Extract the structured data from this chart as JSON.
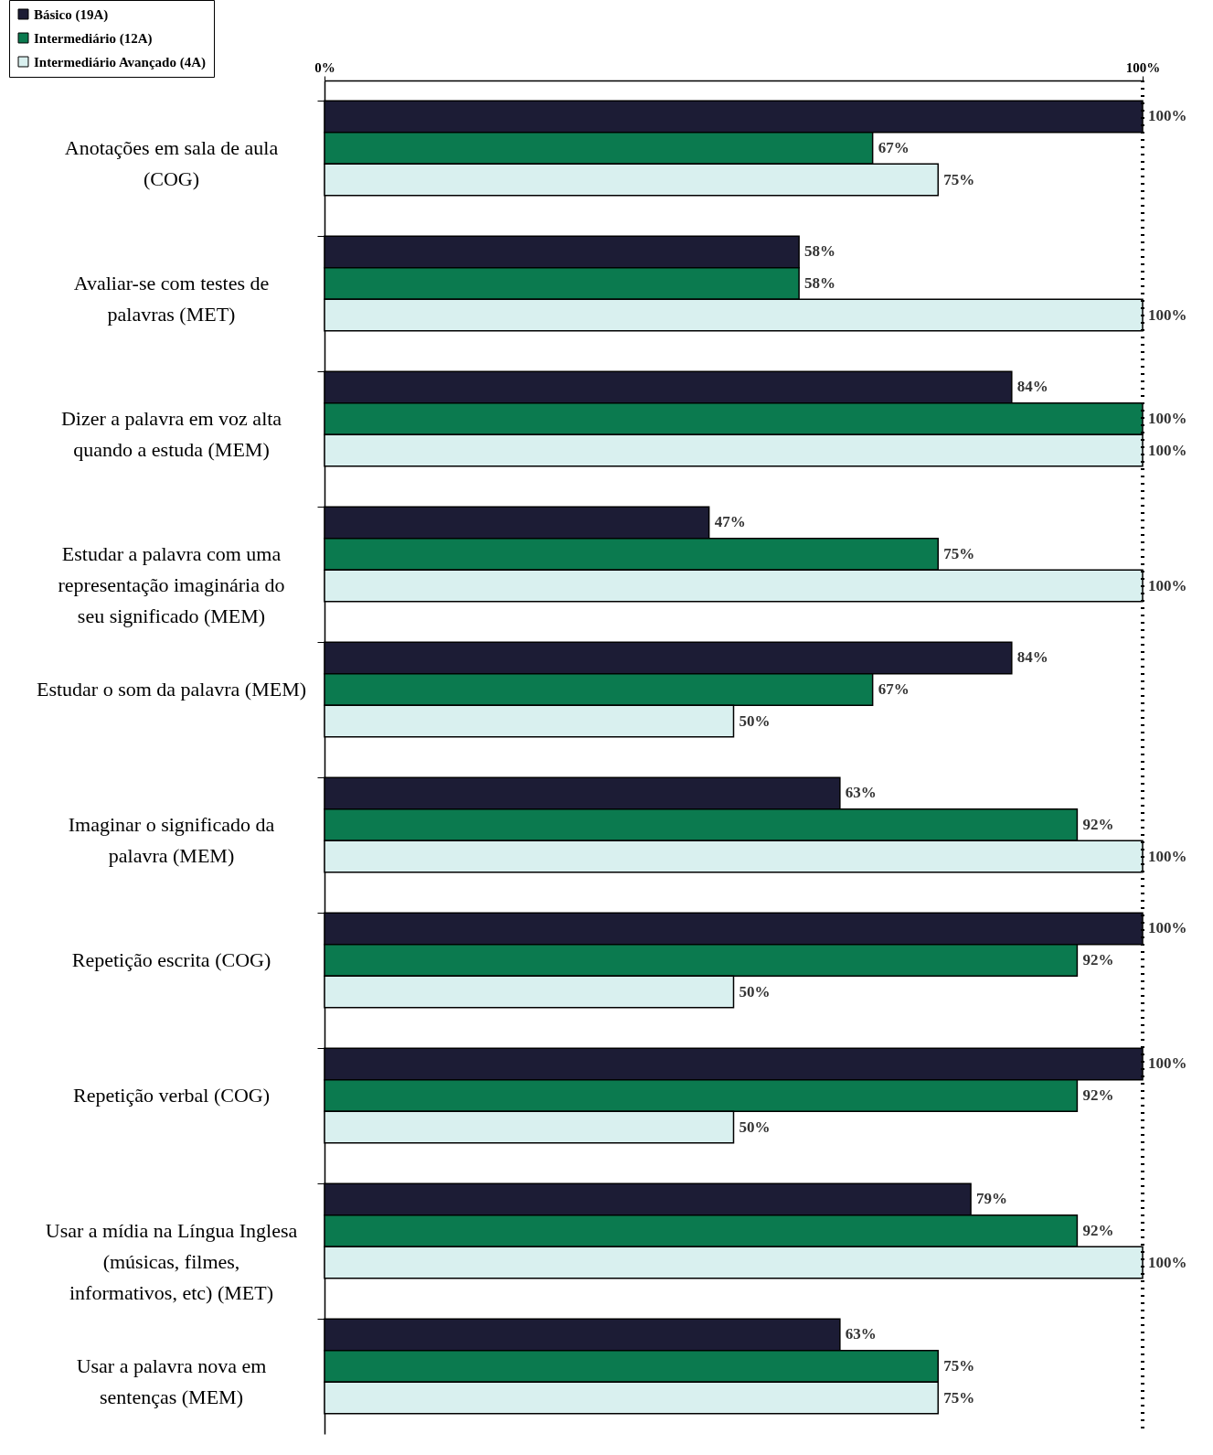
{
  "chart_data": {
    "type": "bar",
    "orientation": "horizontal",
    "categories": [
      "Anotações em sala de aula (COG)",
      "Avaliar-se com testes de palavras (MET)",
      "Dizer a palavra em voz alta quando a estuda (MEM)",
      "Estudar a palavra com uma representação imaginária do seu significado (MEM)",
      "Estudar o som da palavra (MEM)",
      "Imaginar o significado da palavra (MEM)",
      "Repetição escrita (COG)",
      "Repetição verbal (COG)",
      "Usar a mídia na Língua Inglesa (músicas, filmes, informativos, etc) (MET)",
      "Usar a palavra nova em sentenças (MEM)"
    ],
    "series": [
      {
        "name": "Básico (19A)",
        "color": "#1c1c35",
        "values": [
          100,
          58,
          84,
          47,
          84,
          63,
          100,
          100,
          79,
          63
        ],
        "value_labels": [
          "100%",
          "58%",
          "84%",
          "47%",
          "84%",
          "63%",
          "100%",
          "100%",
          "79%",
          "63%"
        ]
      },
      {
        "name": "Intermediário (12A)",
        "color": "#0b7a4f",
        "values": [
          67,
          58,
          100,
          75,
          67,
          92,
          92,
          92,
          92,
          75
        ],
        "value_labels": [
          "67%",
          "58%",
          "100%",
          "75%",
          "67%",
          "92%",
          "92%",
          "92%",
          "92%",
          "75%"
        ]
      },
      {
        "name": "Intermediário Avançado (4A)",
        "color": "#d9f0ef",
        "values": [
          75,
          100,
          100,
          100,
          50,
          100,
          50,
          50,
          100,
          75
        ],
        "value_labels": [
          "75%",
          "100%",
          "100%",
          "100%",
          "50%",
          "100%",
          "50%",
          "50%",
          "100%",
          "75%"
        ]
      }
    ],
    "xlim": [
      0,
      100
    ],
    "xticks": [
      {
        "value": 0,
        "label": "0%"
      },
      {
        "value": 100,
        "label": "100%"
      }
    ],
    "ref_lines": [
      {
        "axis": "x",
        "value": 100,
        "line_style": "dotted"
      }
    ],
    "legend": "top left",
    "grid": false
  }
}
